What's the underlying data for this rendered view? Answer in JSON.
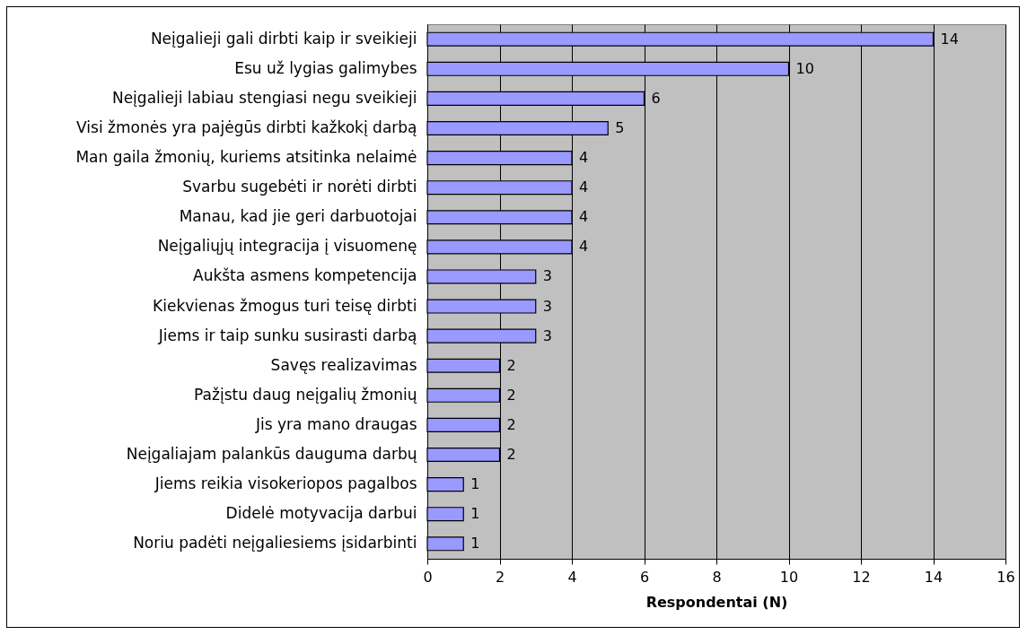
{
  "chart_data": {
    "type": "bar",
    "orientation": "horizontal",
    "categories": [
      "Neįgalieji gali dirbti kaip ir sveikieji",
      "Esu už lygias galimybes",
      "Neįgalieji labiau stengiasi negu sveikieji",
      "Visi žmonės yra pajėgūs dirbti kažkokį darbą",
      "Man gaila žmonių, kuriems atsitinka nelaimė",
      "Svarbu sugebėti ir norėti dirbti",
      "Manau, kad jie geri darbuotojai",
      "Neįgaliųjų integracija į visuomenę",
      "Aukšta asmens kompetencija",
      "Kiekvienas žmogus turi teisę dirbti",
      "Jiems ir taip sunku susirasti darbą",
      "Savęs realizavimas",
      "Pažįstu daug neįgalių žmonių",
      "Jis yra mano draugas",
      "Neįgaliajam palankūs dauguma darbų",
      "Jiems reikia visokeriopos pagalbos",
      "Didelė motyvacija darbui",
      "Noriu padėti neįgaliesiems įsidarbinti"
    ],
    "values": [
      14,
      10,
      6,
      5,
      4,
      4,
      4,
      4,
      3,
      3,
      3,
      2,
      2,
      2,
      2,
      1,
      1,
      1
    ],
    "color": "#9999ff",
    "xlabel": "Respondentai (N)",
    "xlim": [
      0,
      16
    ],
    "xticks": [
      0,
      2,
      4,
      6,
      8,
      10,
      12,
      14,
      16
    ],
    "grid": "x",
    "data_labels": true
  }
}
